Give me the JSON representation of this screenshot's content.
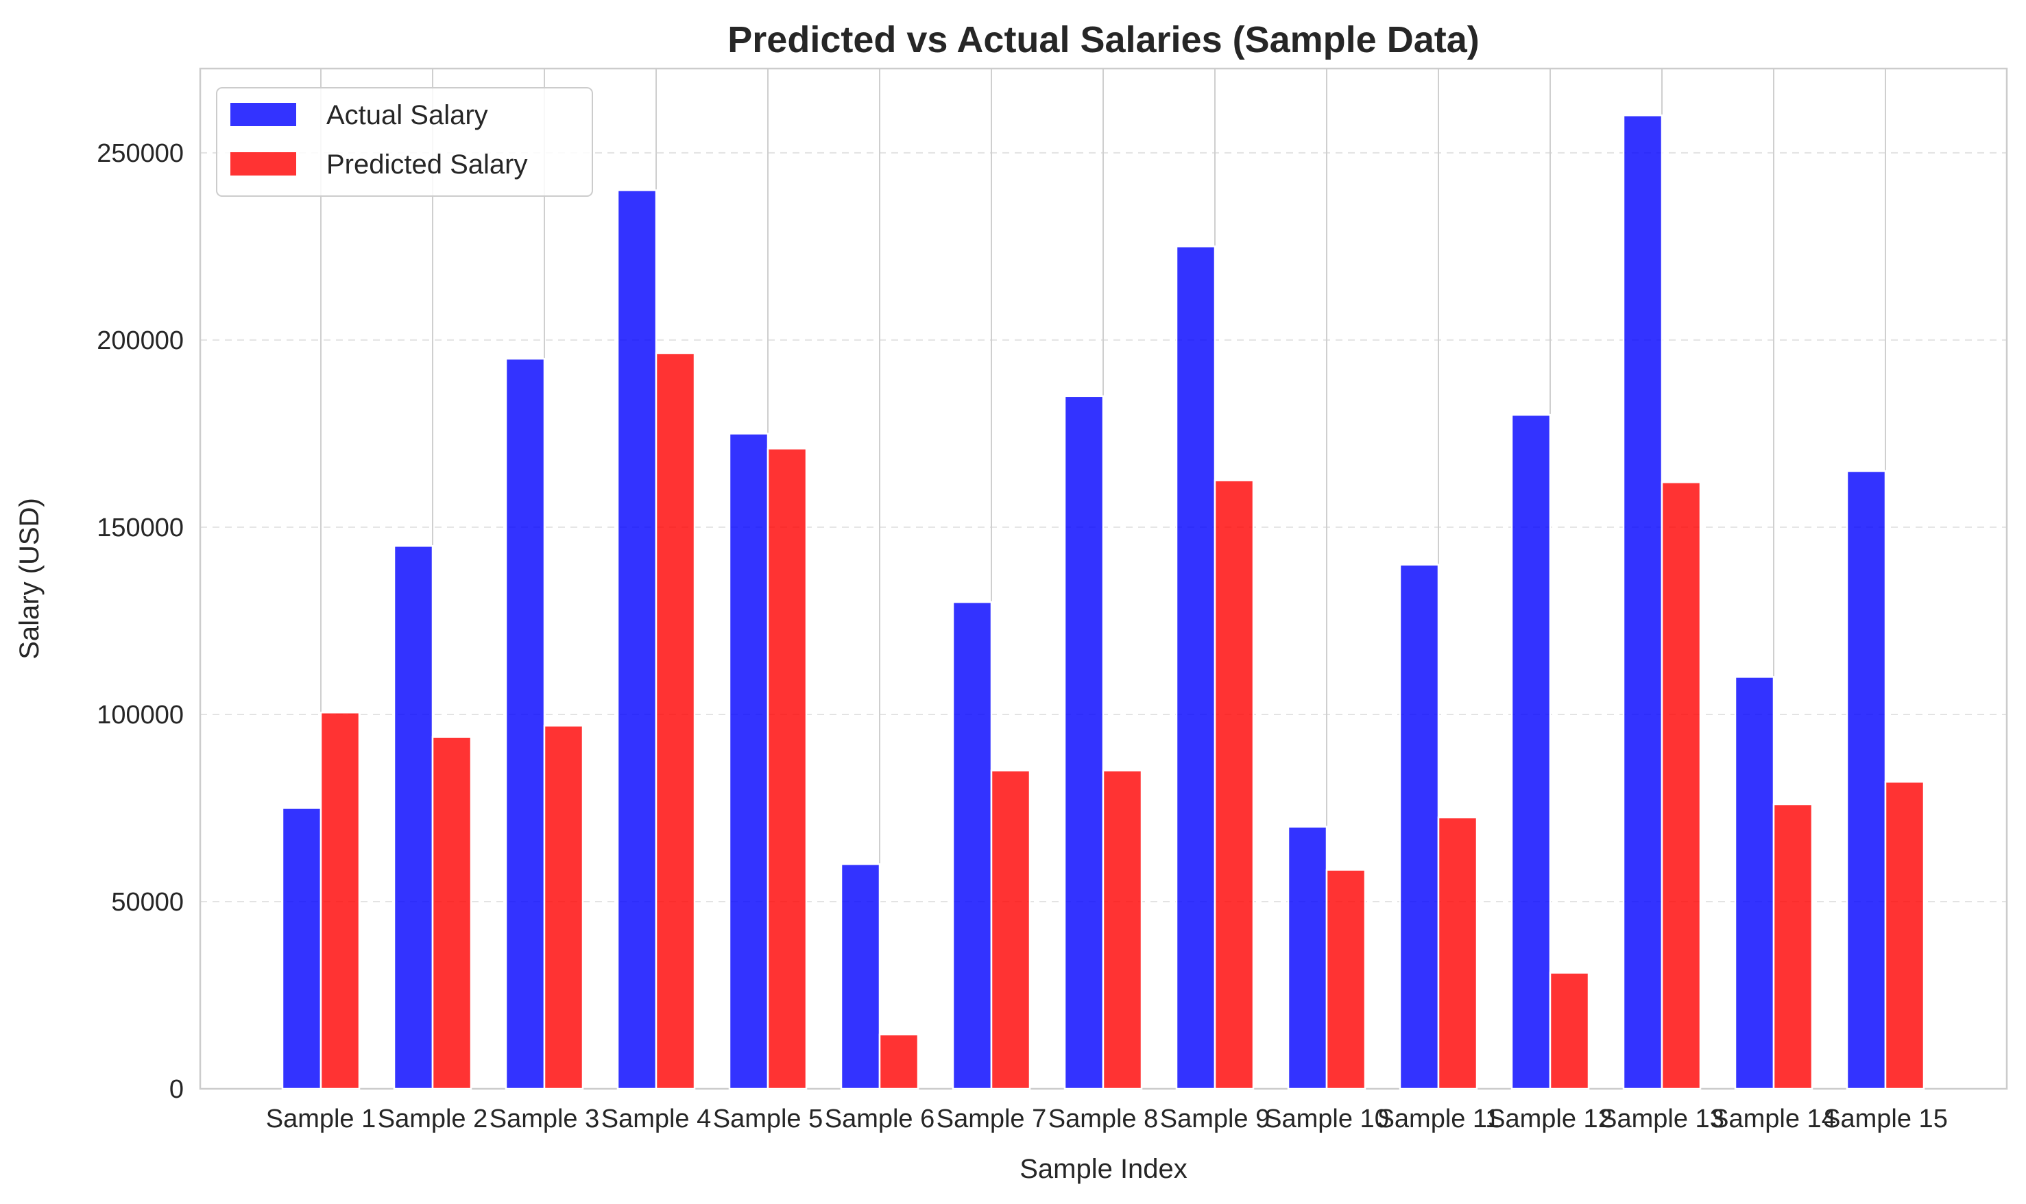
{
  "chart_data": {
    "type": "bar",
    "title": "Predicted vs Actual Salaries (Sample Data)",
    "xlabel": "Sample Index",
    "ylabel": "Salary (USD)",
    "categories": [
      "Sample 1",
      "Sample 2",
      "Sample 3",
      "Sample 4",
      "Sample 5",
      "Sample 6",
      "Sample 7",
      "Sample 8",
      "Sample 9",
      "Sample 10",
      "Sample 11",
      "Sample 12",
      "Sample 13",
      "Sample 14",
      "Sample 15"
    ],
    "series": [
      {
        "name": "Actual Salary",
        "color": "#0000ff",
        "values": [
          75000,
          145000,
          195000,
          240000,
          175000,
          60000,
          130000,
          185000,
          225000,
          70000,
          140000,
          180000,
          260000,
          110000,
          165000
        ]
      },
      {
        "name": "Predicted Salary",
        "color": "#ff0000",
        "values": [
          100500,
          94000,
          97000,
          196500,
          171000,
          14500,
          85000,
          85000,
          162500,
          58500,
          72500,
          31000,
          162000,
          76000,
          82000
        ]
      }
    ],
    "ylim": [
      0,
      272500
    ],
    "yticks": [
      0,
      50000,
      100000,
      150000,
      200000,
      250000
    ],
    "grid": {
      "x": true,
      "y": true,
      "y_style": "dashed"
    },
    "legend_position": "top-left"
  }
}
